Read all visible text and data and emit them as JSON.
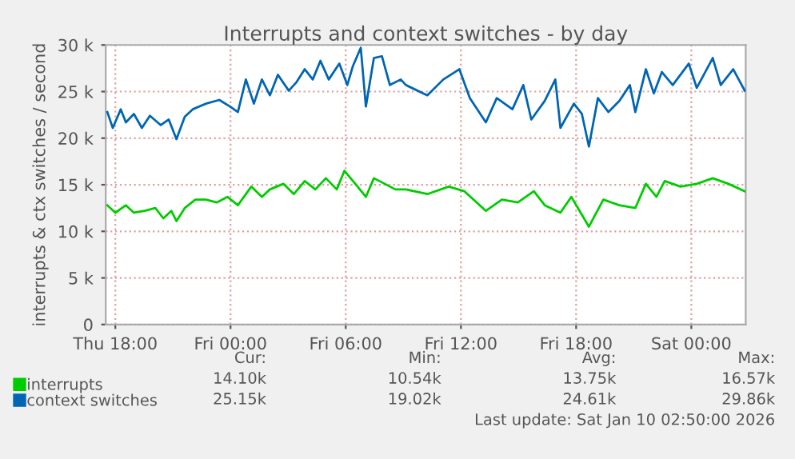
{
  "chart_data": {
    "type": "line",
    "title": "Interrupts and context switches - by day",
    "ylabel": "interrupts & ctx switches / second",
    "xlim": [
      "2026-01-08T17:30",
      "2026-01-10T02:50"
    ],
    "xticks": [
      {
        "value": "2026-01-08T18:00",
        "label": "Thu 18:00"
      },
      {
        "value": "2026-01-09T00:00",
        "label": "Fri 00:00"
      },
      {
        "value": "2026-01-09T06:00",
        "label": "Fri 06:00"
      },
      {
        "value": "2026-01-09T12:00",
        "label": "Fri 12:00"
      },
      {
        "value": "2026-01-09T18:00",
        "label": "Fri 18:00"
      },
      {
        "value": "2026-01-10T00:00",
        "label": "Sat 00:00"
      }
    ],
    "ylim": [
      0,
      30000
    ],
    "yticks": [
      {
        "value": 0,
        "label": "0"
      },
      {
        "value": 5000,
        "label": "5 k"
      },
      {
        "value": 10000,
        "label": "10 k"
      },
      {
        "value": 15000,
        "label": "15 k"
      },
      {
        "value": 20000,
        "label": "20 k"
      },
      {
        "value": 25000,
        "label": "25 k"
      },
      {
        "value": 30000,
        "label": "30 k"
      }
    ],
    "grid": true,
    "legend": "bottom left",
    "marker": "none",
    "line_style": "solid",
    "series": [
      {
        "name": "interrupts",
        "color": "#00cc00",
        "x": [
          "2026-01-08T17:35",
          "2026-01-08T18:00",
          "2026-01-08T18:33",
          "2026-01-08T18:58",
          "2026-01-08T19:32",
          "2026-01-08T20:05",
          "2026-01-08T20:30",
          "2026-01-08T20:55",
          "2026-01-08T21:11",
          "2026-01-08T21:37",
          "2026-01-08T22:10",
          "2026-01-08T22:43",
          "2026-01-08T23:17",
          "2026-01-08T23:50",
          "2026-01-09T00:23",
          "2026-01-09T01:05",
          "2026-01-09T01:38",
          "2026-01-09T02:03",
          "2026-01-09T02:45",
          "2026-01-09T03:18",
          "2026-01-09T03:52",
          "2026-01-09T04:25",
          "2026-01-09T04:58",
          "2026-01-09T05:32",
          "2026-01-09T05:56",
          "2026-01-09T06:30",
          "2026-01-09T07:03",
          "2026-01-09T07:28",
          "2026-01-09T08:02",
          "2026-01-09T08:35",
          "2026-01-09T09:08",
          "2026-01-09T10:15",
          "2026-01-09T11:22",
          "2026-01-09T12:11",
          "2026-01-09T13:18",
          "2026-01-09T14:08",
          "2026-01-09T14:58",
          "2026-01-09T15:48",
          "2026-01-09T16:22",
          "2026-01-09T17:11",
          "2026-01-09T17:45",
          "2026-01-09T18:40",
          "2026-01-09T19:25",
          "2026-01-09T20:15",
          "2026-01-09T21:05",
          "2026-01-09T21:38",
          "2026-01-09T22:11",
          "2026-01-09T22:37",
          "2026-01-09T23:26",
          "2026-01-10T00:17",
          "2026-01-10T01:07",
          "2026-01-10T01:56",
          "2026-01-10T02:47"
        ],
        "values": [
          12800,
          12000,
          12800,
          12000,
          12200,
          12500,
          11400,
          12200,
          11100,
          12500,
          13400,
          13400,
          13100,
          13700,
          12800,
          14800,
          13700,
          14500,
          15100,
          14000,
          15400,
          14500,
          15700,
          14500,
          16500,
          15100,
          13700,
          15700,
          15100,
          14500,
          14500,
          14000,
          14800,
          14300,
          12200,
          13400,
          13100,
          14300,
          12800,
          12000,
          13700,
          10500,
          13400,
          12800,
          12500,
          15100,
          13700,
          15400,
          14800,
          15100,
          15700,
          15100,
          14300
        ]
      },
      {
        "name": "context switches",
        "color": "#0066b3",
        "x": [
          "2026-01-08T17:35",
          "2026-01-08T17:52",
          "2026-01-08T18:17",
          "2026-01-08T18:33",
          "2026-01-08T18:58",
          "2026-01-08T19:23",
          "2026-01-08T19:48",
          "2026-01-08T20:22",
          "2026-01-08T20:47",
          "2026-01-08T21:11",
          "2026-01-08T21:37",
          "2026-01-08T22:02",
          "2026-01-08T22:43",
          "2026-01-08T23:25",
          "2026-01-08T23:58",
          "2026-01-09T00:23",
          "2026-01-09T00:48",
          "2026-01-09T01:13",
          "2026-01-09T01:38",
          "2026-01-09T02:03",
          "2026-01-09T02:28",
          "2026-01-09T03:02",
          "2026-01-09T03:26",
          "2026-01-09T03:52",
          "2026-01-09T04:17",
          "2026-01-09T04:41",
          "2026-01-09T05:07",
          "2026-01-09T05:40",
          "2026-01-09T06:05",
          "2026-01-09T06:22",
          "2026-01-09T06:47",
          "2026-01-09T07:03",
          "2026-01-09T07:28",
          "2026-01-09T07:53",
          "2026-01-09T08:18",
          "2026-01-09T08:52",
          "2026-01-09T09:08",
          "2026-01-09T10:15",
          "2026-01-09T11:05",
          "2026-01-09T11:55",
          "2026-01-09T12:28",
          "2026-01-09T13:18",
          "2026-01-09T13:52",
          "2026-01-09T14:41",
          "2026-01-09T15:15",
          "2026-01-09T15:40",
          "2026-01-09T16:22",
          "2026-01-09T16:55",
          "2026-01-09T17:11",
          "2026-01-09T17:53",
          "2026-01-09T18:18",
          "2026-01-09T18:40",
          "2026-01-09T19:08",
          "2026-01-09T19:41",
          "2026-01-09T20:15",
          "2026-01-09T20:48",
          "2026-01-09T21:05",
          "2026-01-09T21:38",
          "2026-01-09T22:03",
          "2026-01-09T22:28",
          "2026-01-09T23:02",
          "2026-01-09T23:52",
          "2026-01-10T00:17",
          "2026-01-10T01:07",
          "2026-01-10T01:32",
          "2026-01-10T02:11",
          "2026-01-10T02:47"
        ],
        "values": [
          22800,
          21100,
          23100,
          21700,
          22600,
          21100,
          22400,
          21400,
          22000,
          19900,
          22300,
          23100,
          23700,
          24100,
          23400,
          22800,
          26300,
          23700,
          26300,
          24600,
          26800,
          25100,
          26000,
          27400,
          26300,
          28300,
          26300,
          28000,
          25700,
          27700,
          29700,
          23400,
          28600,
          28800,
          25700,
          26300,
          25700,
          24600,
          26300,
          27400,
          24300,
          21700,
          24300,
          23100,
          25700,
          22000,
          24000,
          26300,
          21100,
          23700,
          22600,
          19100,
          24300,
          22800,
          24000,
          25700,
          22800,
          27400,
          24800,
          27100,
          25700,
          28000,
          25400,
          28600,
          25700,
          27400,
          25100
        ]
      }
    ],
    "annotations": [
      "Cur:",
      "Min:",
      "Avg:",
      "Max:",
      "14.10k",
      "10.54k",
      "13.75k",
      "16.57k",
      "25.15k",
      "19.02k",
      "24.61k",
      "29.86k",
      "Last update: Sat Jan 10 02:50:00 2026"
    ]
  }
}
